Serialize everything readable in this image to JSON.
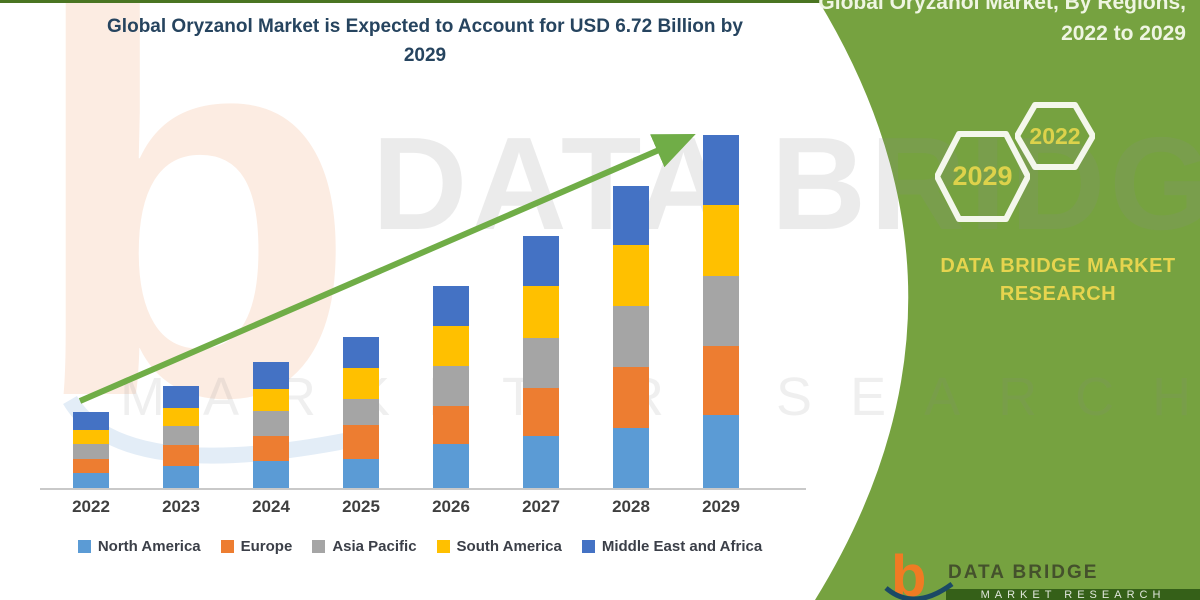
{
  "header": {
    "title_line1": "Global Oryzanol Market is Expected to Account for USD 6.72 Billion by",
    "title_line2": "2029"
  },
  "side_panel": {
    "heading_line1": "Global Oryzanol Market, By Regions,",
    "heading_line2": "2022 to 2029",
    "hexagon_labels": [
      "2029",
      "2022"
    ],
    "brand_line1": "DATA BRIDGE MARKET",
    "brand_line2": "RESEARCH",
    "panel_color": "#76A240",
    "accent_yellow": "#E5D44E"
  },
  "watermarks": {
    "letter": "b",
    "line1": "DATA BRIDGE",
    "line2": "MARKET RESEARCH"
  },
  "footer_logo": {
    "letter": "b",
    "name": "DATA BRIDGE",
    "tagline": "MARKET RESEARCH"
  },
  "chart_data": {
    "type": "bar",
    "stacked": true,
    "title": "Global Oryzanol Market is Expected to Account for USD 6.72 Billion by 2029",
    "unit": "USD Billion",
    "categories": [
      "2022",
      "2023",
      "2024",
      "2025",
      "2026",
      "2027",
      "2028",
      "2029"
    ],
    "series": [
      {
        "name": "North America",
        "color": "#5B9BD5",
        "values": [
          0.28,
          0.41,
          0.51,
          0.56,
          0.83,
          0.99,
          1.15,
          1.38
        ]
      },
      {
        "name": "Europe",
        "color": "#ED7D31",
        "values": [
          0.27,
          0.41,
          0.48,
          0.63,
          0.73,
          0.92,
          1.16,
          1.32
        ]
      },
      {
        "name": "Asia Pacific",
        "color": "#A5A5A5",
        "values": [
          0.29,
          0.35,
          0.48,
          0.51,
          0.76,
          0.95,
          1.15,
          1.33
        ]
      },
      {
        "name": "South America",
        "color": "#FFC000",
        "values": [
          0.26,
          0.35,
          0.42,
          0.58,
          0.76,
          0.98,
          1.16,
          1.35
        ]
      },
      {
        "name": "Middle East and Africa",
        "color": "#4472C4",
        "values": [
          0.34,
          0.41,
          0.51,
          0.59,
          0.75,
          0.95,
          1.13,
          1.34
        ]
      }
    ],
    "totals": [
      1.44,
      1.93,
      2.4,
      2.87,
      3.83,
      4.79,
      5.75,
      6.72
    ],
    "ylim": [
      0,
      7
    ],
    "y_axis_visible": false,
    "grid": false,
    "legend_position": "bottom",
    "trend_arrow_color": "#70AD47"
  }
}
